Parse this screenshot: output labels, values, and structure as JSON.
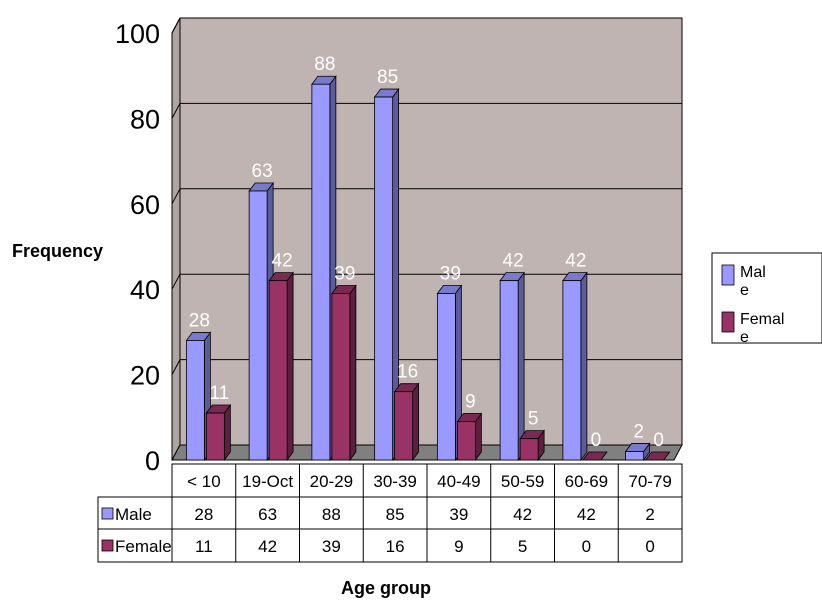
{
  "chart_data": {
    "type": "bar",
    "categories": [
      "< 10",
      "19-Oct",
      "20-29",
      "30-39",
      "40-49",
      "50-59",
      "60-69",
      "70-79"
    ],
    "series": [
      {
        "name": "Male",
        "values": [
          28,
          63,
          88,
          85,
          39,
          42,
          42,
          2
        ],
        "color": "#9999ff"
      },
      {
        "name": "Female",
        "values": [
          11,
          42,
          39,
          16,
          9,
          5,
          0,
          0
        ],
        "color": "#993366"
      }
    ],
    "title": "",
    "xlabel": "Age group",
    "ylabel": "Frequency",
    "ylim": [
      0,
      100
    ],
    "yticks": [
      "0",
      "20",
      "40",
      "60",
      "80",
      "100"
    ],
    "grid": true,
    "legend_position": "right",
    "legend_labels": [
      [
        "Mal",
        "e"
      ],
      [
        "Femal",
        "e"
      ]
    ],
    "data_table": true,
    "colors": {
      "plot_wall": "#c0b4b2",
      "floor": "#808080",
      "gridline": "#000000"
    }
  }
}
